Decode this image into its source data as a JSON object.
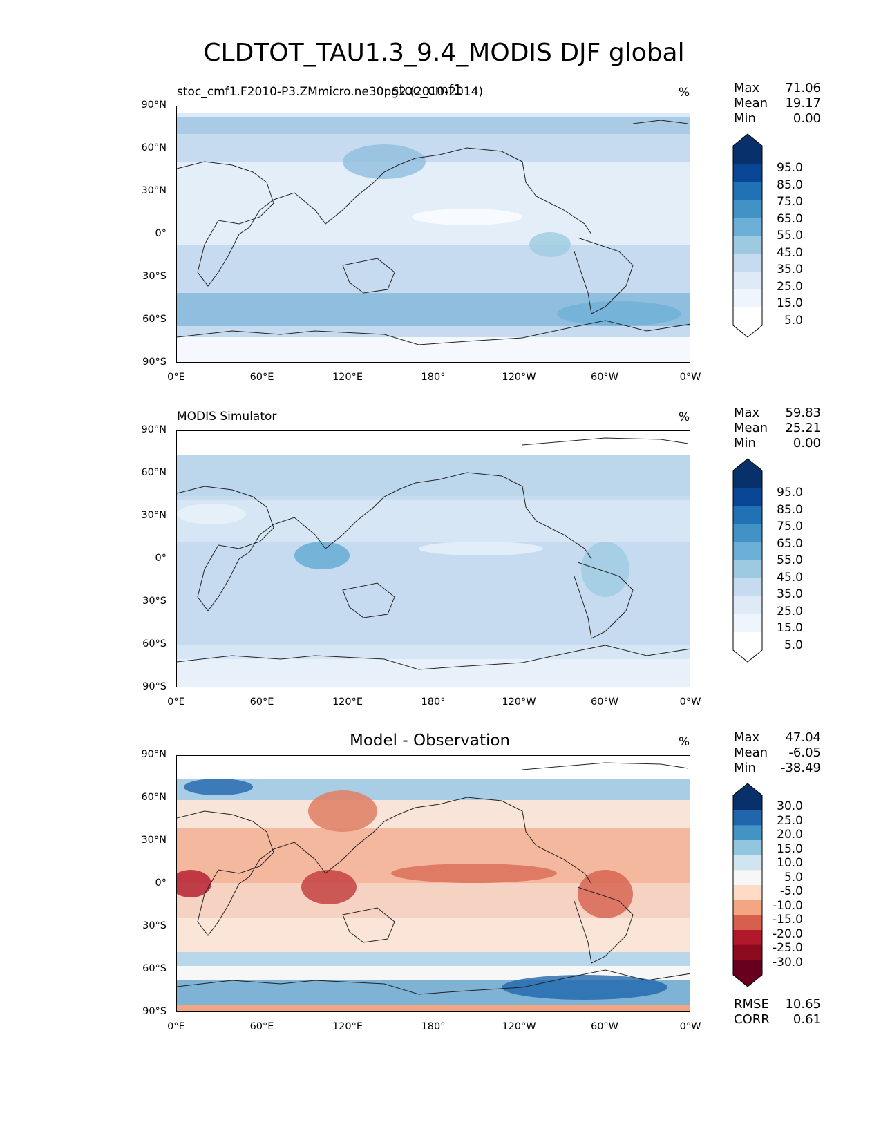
{
  "figure": {
    "title": "CLDTOT_TAU1.3_9.4_MODIS DJF global"
  },
  "lat_ticks": [
    "90°N",
    "60°N",
    "30°N",
    "0°",
    "30°S",
    "60°S",
    "90°S"
  ],
  "lon_ticks": [
    "0°E",
    "60°E",
    "120°E",
    "180°",
    "120°W",
    "60°W",
    "0°W"
  ],
  "panels": [
    {
      "left_title": "stoc_cmf1.F2010-P3.ZMmicro.ne30pg2 (2010-2014)",
      "center_title": "stoc_cmf1",
      "unit": "%",
      "stats": {
        "max_label": "Max",
        "max": "71.06",
        "mean_label": "Mean",
        "mean": "19.17",
        "min_label": "Min",
        "min": "0.00"
      },
      "colorbar": {
        "labels": [
          "95.0",
          "85.0",
          "75.0",
          "65.0",
          "55.0",
          "45.0",
          "35.0",
          "25.0",
          "15.0",
          "5.0"
        ],
        "colors": [
          "#08306b",
          "#084594",
          "#2171b5",
          "#4292c6",
          "#6baed6",
          "#9ecae1",
          "#c6dbef",
          "#deebf7",
          "#eef5fc",
          "#ffffff"
        ],
        "extend_top": "#08306b",
        "extend_bottom": "#ffffff"
      },
      "base_color": "#d6e6f4"
    },
    {
      "left_title": "MODIS Simulator",
      "center_title": "",
      "unit": "%",
      "stats": {
        "max_label": "Max",
        "max": "59.83",
        "mean_label": "Mean",
        "mean": "25.21",
        "min_label": "Min",
        "min": "0.00"
      },
      "colorbar": {
        "labels": [
          "95.0",
          "85.0",
          "75.0",
          "65.0",
          "55.0",
          "45.0",
          "35.0",
          "25.0",
          "15.0",
          "5.0"
        ],
        "colors": [
          "#08306b",
          "#084594",
          "#2171b5",
          "#4292c6",
          "#6baed6",
          "#9ecae1",
          "#c6dbef",
          "#deebf7",
          "#eef5fc",
          "#ffffff"
        ],
        "extend_top": "#08306b",
        "extend_bottom": "#ffffff"
      },
      "base_color": "#c6dbef"
    },
    {
      "left_title": "",
      "center_title": "Model - Observation",
      "unit": "%",
      "stats": {
        "max_label": "Max",
        "max": "47.04",
        "mean_label": "Mean",
        "mean": "-6.05",
        "min_label": "Min",
        "min": "-38.49"
      },
      "colorbar": {
        "labels": [
          "30.0",
          "25.0",
          "20.0",
          "15.0",
          "10.0",
          "5.0",
          "-5.0",
          "-10.0",
          "-15.0",
          "-20.0",
          "-25.0",
          "-30.0"
        ],
        "colors": [
          "#08306b",
          "#2166ac",
          "#4393c3",
          "#92c5de",
          "#d1e5f0",
          "#f7f7f7",
          "#fddbc7",
          "#f4a582",
          "#d6604d",
          "#b2182b",
          "#8b0a1e",
          "#67001f"
        ],
        "extend_top": "#08306b",
        "extend_bottom": "#67001f"
      },
      "base_color": "#f6e2da",
      "metrics": {
        "rmse_label": "RMSE",
        "rmse": "10.65",
        "corr_label": "CORR",
        "corr": "0.61"
      }
    }
  ]
}
